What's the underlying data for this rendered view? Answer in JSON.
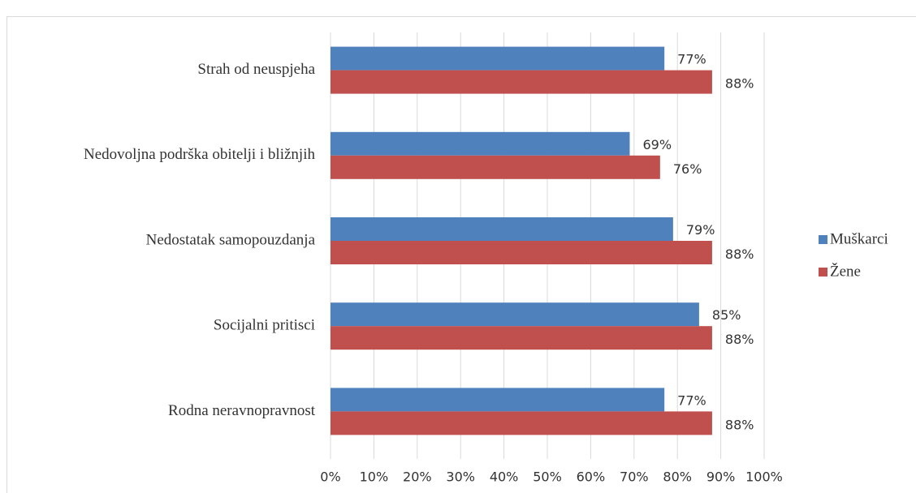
{
  "chart_data": {
    "type": "bar",
    "orientation": "horizontal",
    "categories": [
      "Strah od neuspjeha",
      "Nedovoljna podrška obitelji i bližnjih",
      "Nedostatak samopouzdanja",
      "Socijalni pritisci",
      "Rodna neravnopravnost"
    ],
    "series": [
      {
        "name": "Muškarci",
        "color": "#4f81bd",
        "values": [
          77,
          69,
          79,
          85,
          77
        ],
        "value_labels": [
          "77%",
          "69%",
          "79%",
          "85%",
          "77%"
        ]
      },
      {
        "name": "Žene",
        "color": "#c0504d",
        "values": [
          88,
          76,
          88,
          88,
          88
        ],
        "value_labels": [
          "88%",
          "76%",
          "88%",
          "88%",
          "88%"
        ]
      }
    ],
    "xlim": [
      0,
      100
    ],
    "xticks": [
      {
        "value": 0,
        "label": "0%"
      },
      {
        "value": 10,
        "label": "10%"
      },
      {
        "value": 20,
        "label": "20%"
      },
      {
        "value": 30,
        "label": "30%"
      },
      {
        "value": 40,
        "label": "40%"
      },
      {
        "value": 50,
        "label": "50%"
      },
      {
        "value": 60,
        "label": "60%"
      },
      {
        "value": 70,
        "label": "70%"
      },
      {
        "value": 80,
        "label": "80%"
      },
      {
        "value": 90,
        "label": "90%"
      },
      {
        "value": 100,
        "label": "100%"
      }
    ],
    "grid": true,
    "legend": "right"
  }
}
